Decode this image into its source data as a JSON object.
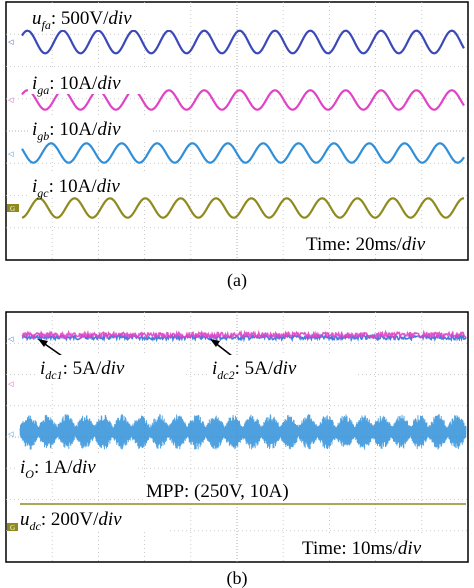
{
  "chart_data": [
    {
      "type": "line",
      "panel": "(a)",
      "series": [
        {
          "symbol": "u",
          "subscript": "fa",
          "scale": "500V/",
          "scale_unit": "div",
          "color": "#3b49b8",
          "cycles": 12.5,
          "amplitude_div": 0.35
        },
        {
          "symbol": "i",
          "subscript": "ga",
          "scale": "10A/",
          "scale_unit": "div",
          "color": "#e043c6",
          "cycles": 12.5,
          "amplitude_div": 0.3
        },
        {
          "symbol": "i",
          "subscript": "gb",
          "scale": "10A/",
          "scale_unit": "div",
          "color": "#2f8fd8",
          "cycles": 12.5,
          "amplitude_div": 0.3
        },
        {
          "symbol": "i",
          "subscript": "gc",
          "scale": "10A/",
          "scale_unit": "div",
          "color": "#8f8a1e",
          "cycles": 12.5,
          "amplitude_div": 0.3
        }
      ],
      "time_label": "Time: 20ms/",
      "time_unit": "div",
      "grid": true
    },
    {
      "type": "line",
      "panel": "(b)",
      "series": [
        {
          "symbol": "i",
          "subscript": "dc1",
          "scale": "5A/",
          "scale_unit": "div",
          "color": "#2f6fd8",
          "style": "flat-noisy"
        },
        {
          "symbol": "i",
          "subscript": "dc2",
          "scale": "5A/",
          "scale_unit": "div",
          "color": "#e043c6",
          "style": "flat-noisy"
        },
        {
          "symbol": "i",
          "subscript": "O",
          "scale": "1A/",
          "scale_unit": "div",
          "color": "#2f8fd8",
          "style": "modulated-band",
          "cycles": 24
        },
        {
          "symbol": "u",
          "subscript": "dc",
          "scale": "200V/",
          "scale_unit": "div",
          "color": "#8f8a1e",
          "style": "flat"
        }
      ],
      "annotation": "MPP: (250V, 10A)",
      "time_label": "Time: 10ms/",
      "time_unit": "div",
      "grid": true
    }
  ],
  "captions": {
    "a": "(a)",
    "b": "(b)"
  },
  "channel_markers": {
    "ground": "G"
  }
}
